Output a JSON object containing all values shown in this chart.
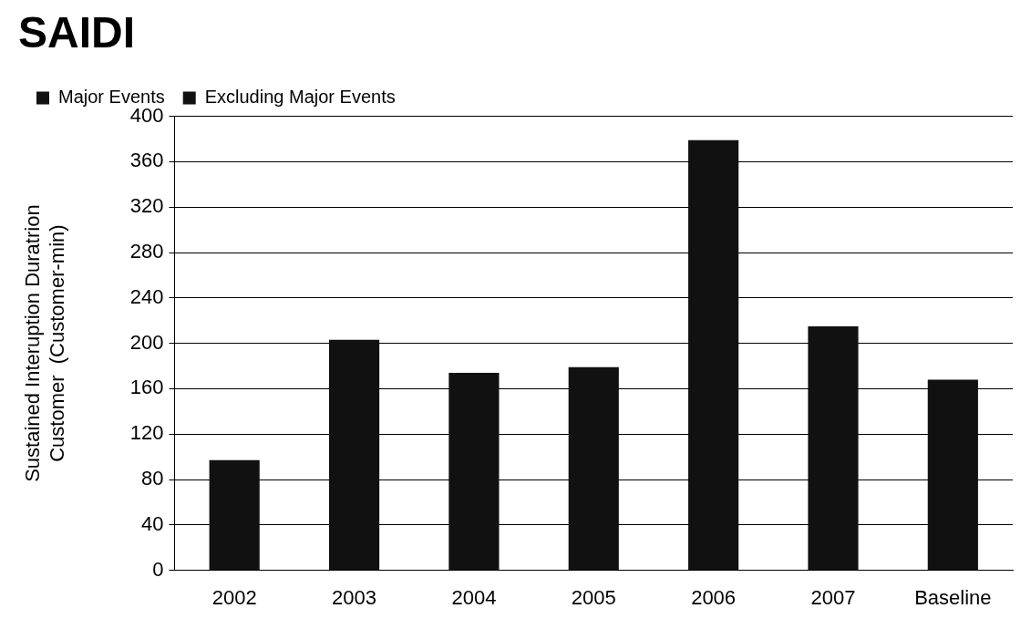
{
  "chart_data": {
    "type": "bar",
    "title": "SAIDI",
    "ylabel": "Sustained Interuption Duratrion Customer  (Customer-min)",
    "categories": [
      "2002",
      "2003",
      "2004",
      "2005",
      "2006",
      "2007",
      "Baseline"
    ],
    "stacked": true,
    "series": [
      {
        "name": "Major Events",
        "color": "#111111",
        "values": [
          null,
          null,
          null,
          null,
          null,
          null,
          null
        ]
      },
      {
        "name": "Excluding Major Events",
        "color": "#111111",
        "values": [
          97,
          203,
          174,
          179,
          379,
          215,
          168
        ]
      }
    ],
    "ylim": [
      0,
      400
    ],
    "yticks": [
      0,
      40,
      80,
      120,
      160,
      200,
      240,
      280,
      320,
      360,
      400
    ],
    "grid": "y",
    "legend": "top left"
  }
}
